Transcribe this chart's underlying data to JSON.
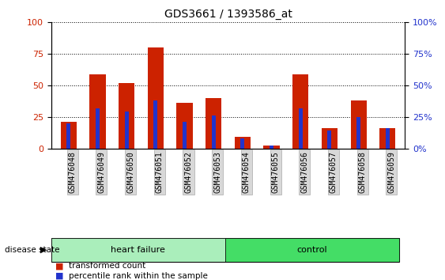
{
  "title": "GDS3661 / 1393586_at",
  "samples": [
    "GSM476048",
    "GSM476049",
    "GSM476050",
    "GSM476051",
    "GSM476052",
    "GSM476053",
    "GSM476054",
    "GSM476055",
    "GSM476056",
    "GSM476057",
    "GSM476058",
    "GSM476059"
  ],
  "transformed_count": [
    21,
    59,
    52,
    80,
    36,
    40,
    9,
    2,
    59,
    16,
    38,
    16
  ],
  "percentile_rank": [
    20,
    32,
    29,
    38,
    21,
    26,
    8,
    2,
    32,
    14,
    25,
    16
  ],
  "bar_color_red": "#cc2200",
  "bar_color_blue": "#2233cc",
  "ylim": [
    0,
    100
  ],
  "yticks": [
    0,
    25,
    50,
    75,
    100
  ],
  "groups": [
    {
      "label": "heart failure",
      "start": 0,
      "end": 6,
      "color": "#aaeebb"
    },
    {
      "label": "control",
      "start": 6,
      "end": 12,
      "color": "#44dd66"
    }
  ],
  "disease_state_label": "disease state",
  "legend_items": [
    {
      "label": "transformed count",
      "color": "#cc2200"
    },
    {
      "label": "percentile rank within the sample",
      "color": "#2233cc"
    }
  ],
  "bar_width": 0.55,
  "title_fontsize": 10,
  "tick_fontsize": 7,
  "ytick_fontsize": 8
}
